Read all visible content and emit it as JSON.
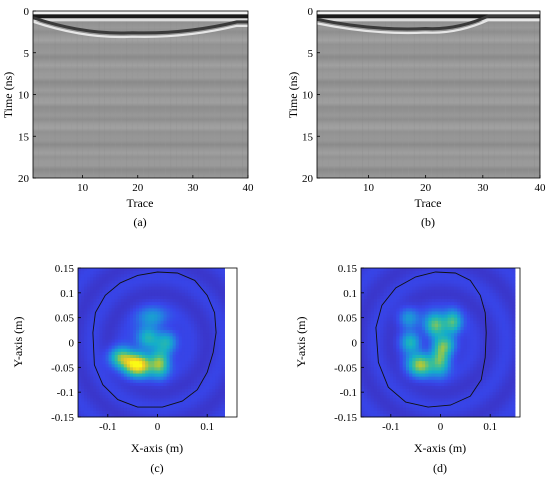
{
  "chart_data": [
    {
      "id": "a",
      "type": "heatmap",
      "caption": "(a)",
      "xlabel": "Trace",
      "ylabel": "Time (ns)",
      "xlim": [
        1,
        40
      ],
      "ylim": [
        0,
        20
      ],
      "y_reversed": true,
      "xticks": [
        10,
        20,
        30,
        40
      ],
      "yticks": [
        0,
        5,
        10,
        15,
        20
      ],
      "colormap": "gray",
      "surface_reflection_ns": 0.4,
      "hyperbola_apex": {
        "trace": 19,
        "time_ns": 2.6
      },
      "hyperbola_left": {
        "trace": 2,
        "time_ns": 0.8
      },
      "hyperbola_right": {
        "trace": 38,
        "time_ns": 1.3
      }
    },
    {
      "id": "b",
      "type": "heatmap",
      "caption": "(b)",
      "xlabel": "Trace",
      "ylabel": "Time (ns)",
      "xlim": [
        1,
        40
      ],
      "ylim": [
        0,
        20
      ],
      "y_reversed": true,
      "xticks": [
        10,
        20,
        30,
        40
      ],
      "yticks": [
        0,
        5,
        10,
        15,
        20
      ],
      "colormap": "gray",
      "surface_reflection_ns": 0.4,
      "hyperbola_apex": {
        "trace": 20,
        "time_ns": 2.1
      },
      "hyperbola_left": {
        "trace": 2,
        "time_ns": 1.0
      },
      "hyperbola_right": {
        "trace": 31,
        "time_ns": 0.6
      }
    },
    {
      "id": "c",
      "type": "heatmap",
      "caption": "(c)",
      "xlabel": "X-axis (m)",
      "ylabel": "Y-axis (m)",
      "xlim": [
        -0.16,
        0.16
      ],
      "ylim": [
        -0.15,
        0.15
      ],
      "xticks": [
        -0.1,
        0,
        0.1
      ],
      "yticks": [
        0.15,
        0.1,
        0.05,
        0,
        -0.05,
        -0.1,
        -0.15
      ],
      "ytick_labels": [
        "0.15",
        "0.1",
        "0.05",
        "0",
        "-0.05",
        "-0.1",
        "-0.15"
      ],
      "xtick_labels": [
        "-0.1",
        "0",
        "0.1"
      ],
      "image_xlim": [
        -0.16,
        0.135
      ],
      "colormap": "parula",
      "contour": [
        [
          -0.13,
          0.02
        ],
        [
          -0.125,
          0.06
        ],
        [
          -0.105,
          0.095
        ],
        [
          -0.075,
          0.12
        ],
        [
          -0.04,
          0.135
        ],
        [
          0,
          0.142
        ],
        [
          0.04,
          0.14
        ],
        [
          0.075,
          0.125
        ],
        [
          0.1,
          0.095
        ],
        [
          0.115,
          0.06
        ],
        [
          0.118,
          0.02
        ],
        [
          0.112,
          -0.02
        ],
        [
          0.1,
          -0.06
        ],
        [
          0.08,
          -0.095
        ],
        [
          0.05,
          -0.118
        ],
        [
          0.01,
          -0.13
        ],
        [
          -0.04,
          -0.13
        ],
        [
          -0.08,
          -0.115
        ],
        [
          -0.11,
          -0.085
        ],
        [
          -0.127,
          -0.045
        ],
        [
          -0.13,
          0.02
        ]
      ],
      "hotspots": [
        {
          "x": -0.04,
          "y": -0.045,
          "amp": 1.0,
          "sx": 0.02,
          "sy": 0.016
        },
        {
          "x": 0.005,
          "y": -0.042,
          "amp": 0.65,
          "sx": 0.013,
          "sy": 0.018
        },
        {
          "x": -0.075,
          "y": -0.03,
          "amp": 0.55,
          "sx": 0.016,
          "sy": 0.014
        },
        {
          "x": -0.02,
          "y": 0.01,
          "amp": 0.45,
          "sx": 0.016,
          "sy": 0.016
        },
        {
          "x": 0.02,
          "y": 0.0,
          "amp": 0.4,
          "sx": 0.014,
          "sy": 0.016
        },
        {
          "x": -0.01,
          "y": 0.05,
          "amp": 0.3,
          "sx": 0.02,
          "sy": 0.014
        }
      ]
    },
    {
      "id": "d",
      "type": "heatmap",
      "caption": "(d)",
      "xlabel": "X-axis (m)",
      "ylabel": "Y-axis (m)",
      "xlim": [
        -0.16,
        0.16
      ],
      "ylim": [
        -0.15,
        0.15
      ],
      "xticks": [
        -0.1,
        0,
        0.1
      ],
      "yticks": [
        0.15,
        0.1,
        0.05,
        0,
        -0.05,
        -0.1,
        -0.15
      ],
      "ytick_labels": [
        "0.15",
        "0.1",
        "0.05",
        "0",
        "-0.05",
        "-0.1",
        "-0.15"
      ],
      "xtick_labels": [
        "-0.1",
        "0",
        "0.1"
      ],
      "image_xlim": [
        -0.16,
        0.15
      ],
      "colormap": "parula",
      "contour": [
        [
          -0.13,
          0.03
        ],
        [
          -0.118,
          0.075
        ],
        [
          -0.09,
          0.11
        ],
        [
          -0.05,
          0.132
        ],
        [
          -0.01,
          0.142
        ],
        [
          0.03,
          0.14
        ],
        [
          0.06,
          0.125
        ],
        [
          0.08,
          0.095
        ],
        [
          0.09,
          0.06
        ],
        [
          0.092,
          0.02
        ],
        [
          0.09,
          -0.03
        ],
        [
          0.082,
          -0.075
        ],
        [
          0.06,
          -0.108
        ],
        [
          0.02,
          -0.126
        ],
        [
          -0.025,
          -0.13
        ],
        [
          -0.07,
          -0.12
        ],
        [
          -0.105,
          -0.09
        ],
        [
          -0.125,
          -0.04
        ],
        [
          -0.13,
          0.03
        ]
      ],
      "hotspots": [
        {
          "x": -0.04,
          "y": -0.045,
          "amp": 0.7,
          "sx": 0.018,
          "sy": 0.016
        },
        {
          "x": 0.0,
          "y": -0.035,
          "amp": 0.6,
          "sx": 0.013,
          "sy": 0.02
        },
        {
          "x": -0.01,
          "y": 0.035,
          "amp": 0.65,
          "sx": 0.015,
          "sy": 0.016
        },
        {
          "x": 0.025,
          "y": 0.04,
          "amp": 0.55,
          "sx": 0.012,
          "sy": 0.016
        },
        {
          "x": 0.01,
          "y": -0.005,
          "amp": 0.45,
          "sx": 0.015,
          "sy": 0.014
        },
        {
          "x": -0.06,
          "y": 0.0,
          "amp": 0.4,
          "sx": 0.014,
          "sy": 0.014
        },
        {
          "x": -0.065,
          "y": 0.05,
          "amp": 0.3,
          "sx": 0.014,
          "sy": 0.014
        }
      ]
    }
  ]
}
